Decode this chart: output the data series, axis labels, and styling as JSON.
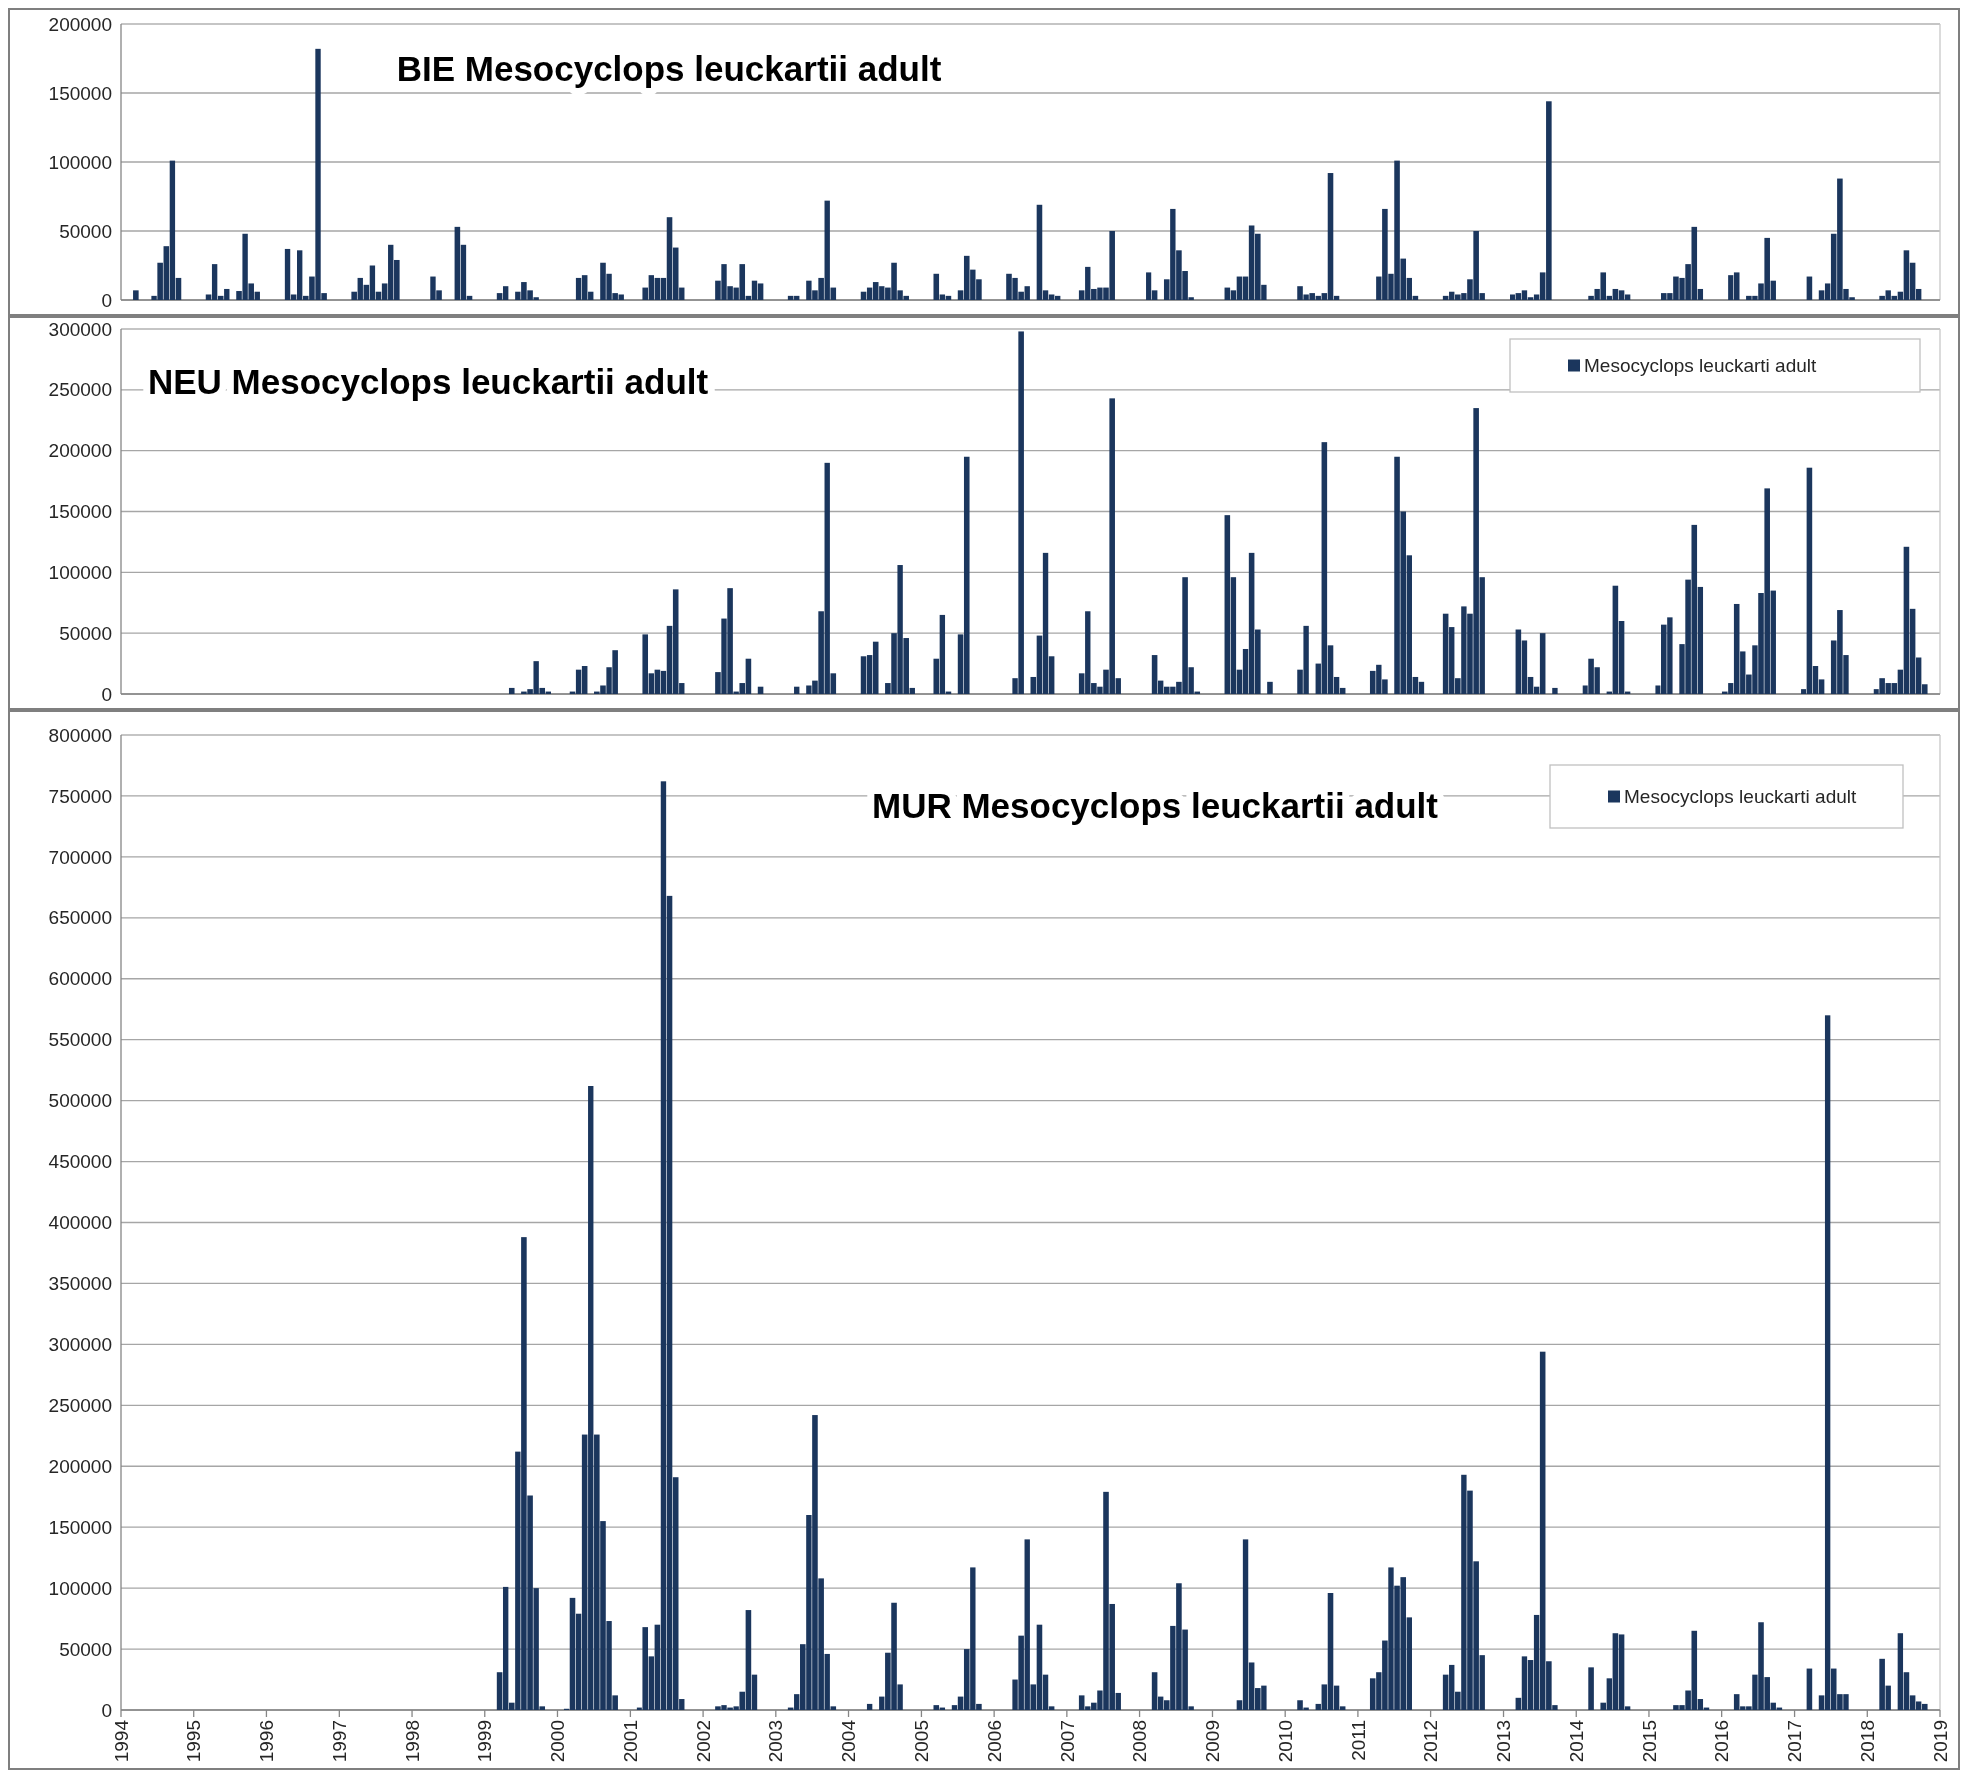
{
  "chart_data": [
    {
      "type": "bar",
      "title": "BIE Mesocyclops leuckartii adult",
      "xlim": [
        "1994-01",
        "2019-01"
      ],
      "ylim": [
        0,
        200000
      ],
      "yticks": [
        0,
        50000,
        100000,
        150000,
        200000
      ],
      "grid": "y",
      "tick_labels": "y",
      "x": [
        "1994-03",
        "1994-06",
        "1994-07",
        "1994-08",
        "1994-09",
        "1994-10",
        "1995-03",
        "1995-04",
        "1995-05",
        "1995-06",
        "1995-08",
        "1995-09",
        "1995-10",
        "1995-11",
        "1996-04",
        "1996-05",
        "1996-06",
        "1996-07",
        "1996-08",
        "1996-09",
        "1996-10",
        "1997-03",
        "1997-04",
        "1997-05",
        "1997-06",
        "1997-07",
        "1997-08",
        "1997-09",
        "1997-10",
        "1998-04",
        "1998-05",
        "1998-08",
        "1998-09",
        "1998-10",
        "1999-03",
        "1999-04",
        "1999-06",
        "1999-07",
        "1999-08",
        "1999-09",
        "2000-04",
        "2000-05",
        "2000-06",
        "2000-08",
        "2000-09",
        "2000-10",
        "2000-11",
        "2001-03",
        "2001-04",
        "2001-05",
        "2001-06",
        "2001-07",
        "2001-08",
        "2001-09",
        "2002-03",
        "2002-04",
        "2002-05",
        "2002-06",
        "2002-07",
        "2002-08",
        "2002-09",
        "2002-10",
        "2003-03",
        "2003-04",
        "2003-06",
        "2003-07",
        "2003-08",
        "2003-09",
        "2003-10",
        "2004-03",
        "2004-04",
        "2004-05",
        "2004-06",
        "2004-07",
        "2004-08",
        "2004-09",
        "2004-10",
        "2005-03",
        "2005-04",
        "2005-05",
        "2005-07",
        "2005-08",
        "2005-09",
        "2005-10",
        "2006-03",
        "2006-04",
        "2006-05",
        "2006-06",
        "2006-08",
        "2006-09",
        "2006-10",
        "2006-11",
        "2007-03",
        "2007-04",
        "2007-05",
        "2007-06",
        "2007-07",
        "2007-08",
        "2008-02",
        "2008-03",
        "2008-05",
        "2008-06",
        "2008-07",
        "2008-08",
        "2008-09",
        "2009-03",
        "2009-04",
        "2009-05",
        "2009-06",
        "2009-07",
        "2009-08",
        "2009-09",
        "2010-03",
        "2010-04",
        "2010-05",
        "2010-06",
        "2010-07",
        "2010-08",
        "2010-09",
        "2011-04",
        "2011-05",
        "2011-06",
        "2011-07",
        "2011-08",
        "2011-09",
        "2011-10",
        "2012-03",
        "2012-04",
        "2012-05",
        "2012-06",
        "2012-07",
        "2012-08",
        "2012-09",
        "2013-02",
        "2013-03",
        "2013-04",
        "2013-05",
        "2013-06",
        "2013-07",
        "2013-08",
        "2014-03",
        "2014-04",
        "2014-05",
        "2014-06",
        "2014-07",
        "2014-08",
        "2014-09",
        "2015-03",
        "2015-04",
        "2015-05",
        "2015-06",
        "2015-07",
        "2015-08",
        "2015-09",
        "2016-02",
        "2016-03",
        "2016-05",
        "2016-06",
        "2016-07",
        "2016-08",
        "2016-09",
        "2017-03",
        "2017-05",
        "2017-06",
        "2017-07",
        "2017-08",
        "2017-09",
        "2017-10",
        "2018-03",
        "2018-04",
        "2018-05",
        "2018-06",
        "2018-07",
        "2018-08",
        "2018-09"
      ],
      "series": [
        {
          "color": "#1b365d",
          "values": [
            7000,
            3000,
            27000,
            39000,
            101000,
            16000,
            4000,
            26000,
            3000,
            8000,
            6500,
            48000,
            12000,
            6000,
            37000,
            4000,
            36000,
            3000,
            17000,
            182000,
            5000,
            6000,
            16000,
            11000,
            25000,
            6000,
            12000,
            40000,
            29000,
            17000,
            7000,
            53000,
            40000,
            3000,
            5000,
            10000,
            6000,
            13000,
            7000,
            2000,
            16000,
            18000,
            6000,
            27000,
            19000,
            5000,
            4000,
            9000,
            18000,
            16000,
            16000,
            60000,
            38000,
            9000,
            14000,
            26000,
            10000,
            9000,
            26000,
            3000,
            14000,
            12000,
            3000,
            3000,
            14000,
            7000,
            16000,
            72000,
            9000,
            6000,
            9000,
            13000,
            10000,
            9000,
            27000,
            7000,
            3000,
            19000,
            4000,
            3000,
            7000,
            32000,
            22000,
            15000,
            19000,
            16000,
            6000,
            10000,
            69000,
            7000,
            4000,
            3000,
            7000,
            24000,
            8000,
            9000,
            9000,
            50000,
            20000,
            7000,
            15000,
            66000,
            36000,
            21000,
            2000,
            9000,
            7000,
            17000,
            17000,
            54000,
            48000,
            11000,
            10000,
            4000,
            5000,
            3000,
            5000,
            92000,
            3000,
            17000,
            66000,
            19000,
            101000,
            30000,
            16000,
            3000,
            3000,
            6000,
            4000,
            5000,
            15000,
            50000,
            5000,
            4000,
            5000,
            7000,
            2000,
            4000,
            20000,
            144000,
            3000,
            8000,
            20000,
            3000,
            8000,
            7000,
            4000,
            5000,
            5000,
            17000,
            16000,
            26000,
            53000,
            8000,
            18000,
            20000,
            3000,
            3000,
            12000,
            45000,
            14000,
            17000,
            7000,
            12000,
            48000,
            88000,
            8000,
            2000,
            3000,
            7000,
            3000,
            6000,
            36000,
            27000,
            8000
          ]
        }
      ]
    },
    {
      "type": "bar",
      "title": "NEU Mesocyclops leuckartii adult",
      "xlim": [
        "1994-01",
        "2019-01"
      ],
      "ylim": [
        0,
        300000
      ],
      "yticks": [
        0,
        50000,
        100000,
        150000,
        200000,
        250000,
        300000
      ],
      "grid": "y",
      "tick_labels": "y",
      "legend": "top right",
      "x": [
        "1999-05",
        "1999-07",
        "1999-08",
        "1999-09",
        "1999-10",
        "1999-11",
        "2000-03",
        "2000-04",
        "2000-05",
        "2000-07",
        "2000-08",
        "2000-09",
        "2000-10",
        "2001-03",
        "2001-04",
        "2001-05",
        "2001-06",
        "2001-07",
        "2001-08",
        "2001-09",
        "2002-03",
        "2002-04",
        "2002-05",
        "2002-06",
        "2002-07",
        "2002-08",
        "2002-10",
        "2003-04",
        "2003-06",
        "2003-07",
        "2003-08",
        "2003-09",
        "2003-10",
        "2004-03",
        "2004-04",
        "2004-05",
        "2004-07",
        "2004-08",
        "2004-09",
        "2004-10",
        "2004-11",
        "2005-03",
        "2005-04",
        "2005-05",
        "2005-07",
        "2005-08",
        "2006-04",
        "2006-05",
        "2006-07",
        "2006-08",
        "2006-09",
        "2006-10",
        "2007-03",
        "2007-04",
        "2007-05",
        "2007-06",
        "2007-07",
        "2007-08",
        "2007-09",
        "2008-03",
        "2008-04",
        "2008-05",
        "2008-06",
        "2008-07",
        "2008-08",
        "2008-09",
        "2008-10",
        "2009-03",
        "2009-04",
        "2009-05",
        "2009-06",
        "2009-07",
        "2009-08",
        "2009-10",
        "2010-03",
        "2010-04",
        "2010-06",
        "2010-07",
        "2010-08",
        "2010-09",
        "2010-10",
        "2011-03",
        "2011-04",
        "2011-05",
        "2011-07",
        "2011-08",
        "2011-09",
        "2011-10",
        "2011-11",
        "2012-03",
        "2012-04",
        "2012-05",
        "2012-06",
        "2012-07",
        "2012-08",
        "2012-09",
        "2013-03",
        "2013-04",
        "2013-05",
        "2013-06",
        "2013-07",
        "2013-09",
        "2014-02",
        "2014-03",
        "2014-04",
        "2014-06",
        "2014-07",
        "2014-08",
        "2014-09",
        "2015-02",
        "2015-03",
        "2015-04",
        "2015-06",
        "2015-07",
        "2015-08",
        "2015-09",
        "2016-01",
        "2016-02",
        "2016-03",
        "2016-04",
        "2016-05",
        "2016-06",
        "2016-07",
        "2016-08",
        "2016-09",
        "2017-02",
        "2017-03",
        "2017-04",
        "2017-05",
        "2017-07",
        "2017-08",
        "2017-09",
        "2018-02",
        "2018-03",
        "2018-04",
        "2018-05",
        "2018-06",
        "2018-07",
        "2018-08",
        "2018-09",
        "2018-10"
      ],
      "series": [
        {
          "name": "Mesocyclops leuckarti adult",
          "color": "#1b365d",
          "values": [
            5000,
            2000,
            4000,
            27000,
            5000,
            2000,
            2000,
            20000,
            23000,
            2000,
            7000,
            22000,
            36000,
            49000,
            17000,
            20000,
            19000,
            56000,
            86000,
            9000,
            18000,
            62000,
            87000,
            2000,
            9000,
            29000,
            6000,
            6000,
            7000,
            11000,
            68000,
            190000,
            17000,
            31000,
            32000,
            43000,
            9000,
            50000,
            106000,
            46000,
            5000,
            29000,
            65000,
            2000,
            49000,
            195000,
            13000,
            298000,
            14000,
            48000,
            116000,
            31000,
            17000,
            68000,
            9000,
            6000,
            20000,
            243000,
            13000,
            32000,
            11000,
            6000,
            6000,
            10000,
            96000,
            22000,
            2000,
            147000,
            96000,
            20000,
            37000,
            116000,
            53000,
            10000,
            20000,
            56000,
            25000,
            207000,
            40000,
            14000,
            5000,
            19000,
            24000,
            12000,
            195000,
            150000,
            114000,
            14000,
            10000,
            66000,
            55000,
            13000,
            72000,
            66000,
            235000,
            96000,
            53000,
            44000,
            14000,
            6000,
            50000,
            5000,
            7000,
            29000,
            22000,
            2000,
            89000,
            60000,
            2000,
            7000,
            57000,
            63000,
            41000,
            94000,
            139000,
            88000,
            2000,
            9000,
            74000,
            35000,
            16000,
            40000,
            83000,
            169000,
            85000,
            4000,
            186000,
            23000,
            12000,
            44000,
            69000,
            32000,
            4000,
            13000,
            9000,
            9000,
            20000,
            121000,
            70000,
            30000,
            8000
          ]
        }
      ]
    },
    {
      "type": "bar",
      "title": "MUR Mesocyclops leuckartii adult",
      "xlim": [
        "1994-01",
        "2019-01"
      ],
      "ylim": [
        0,
        800000
      ],
      "yticks": [
        0,
        50000,
        100000,
        150000,
        200000,
        250000,
        300000,
        350000,
        400000,
        450000,
        500000,
        550000,
        600000,
        650000,
        700000,
        750000,
        800000
      ],
      "grid": "y",
      "legend": "top right",
      "xticks": [
        "1994",
        "1995",
        "1996",
        "1997",
        "1998",
        "1999",
        "2000",
        "2001",
        "2002",
        "2003",
        "2004",
        "2005",
        "2006",
        "2007",
        "2008",
        "2009",
        "2010",
        "2011",
        "2012",
        "2013",
        "2014",
        "2015",
        "2016",
        "2017",
        "2018",
        "2019"
      ],
      "x": [
        "1999-03",
        "1999-04",
        "1999-05",
        "1999-06",
        "1999-07",
        "1999-08",
        "1999-09",
        "1999-10",
        "2000-02",
        "2000-03",
        "2000-04",
        "2000-05",
        "2000-06",
        "2000-07",
        "2000-08",
        "2000-09",
        "2000-10",
        "2001-02",
        "2001-03",
        "2001-04",
        "2001-05",
        "2001-06",
        "2001-07",
        "2001-08",
        "2001-09",
        "2002-03",
        "2002-04",
        "2002-05",
        "2002-06",
        "2002-07",
        "2002-08",
        "2002-09",
        "2003-03",
        "2003-04",
        "2003-05",
        "2003-06",
        "2003-07",
        "2003-08",
        "2003-09",
        "2003-10",
        "2004-04",
        "2004-06",
        "2004-07",
        "2004-08",
        "2004-09",
        "2005-03",
        "2005-04",
        "2005-06",
        "2005-07",
        "2005-08",
        "2005-09",
        "2005-10",
        "2006-04",
        "2006-05",
        "2006-06",
        "2006-07",
        "2006-08",
        "2006-09",
        "2006-10",
        "2007-03",
        "2007-04",
        "2007-05",
        "2007-06",
        "2007-07",
        "2007-08",
        "2007-09",
        "2008-03",
        "2008-04",
        "2008-05",
        "2008-06",
        "2008-07",
        "2008-08",
        "2008-09",
        "2009-05",
        "2009-06",
        "2009-07",
        "2009-08",
        "2009-09",
        "2010-03",
        "2010-04",
        "2010-06",
        "2010-07",
        "2010-08",
        "2010-09",
        "2010-10",
        "2011-03",
        "2011-04",
        "2011-05",
        "2011-06",
        "2011-07",
        "2011-08",
        "2011-09",
        "2012-03",
        "2012-04",
        "2012-05",
        "2012-06",
        "2012-07",
        "2012-08",
        "2012-09",
        "2013-03",
        "2013-04",
        "2013-05",
        "2013-06",
        "2013-07",
        "2013-08",
        "2013-09",
        "2014-03",
        "2014-05",
        "2014-06",
        "2014-07",
        "2014-08",
        "2014-09",
        "2015-05",
        "2015-06",
        "2015-07",
        "2015-08",
        "2015-09",
        "2015-10",
        "2016-03",
        "2016-04",
        "2016-05",
        "2016-06",
        "2016-07",
        "2016-08",
        "2016-09",
        "2016-10",
        "2017-03",
        "2017-05",
        "2017-06",
        "2017-07",
        "2017-08",
        "2017-09",
        "2018-03",
        "2018-04",
        "2018-06",
        "2018-07",
        "2018-08",
        "2018-09",
        "2018-10"
      ],
      "series": [
        {
          "name": "Mesocyclops leuckarti adult",
          "color": "#1b365d",
          "values": [
            31000,
            101000,
            6000,
            212000,
            388000,
            176000,
            100000,
            3000,
            1000,
            92000,
            79000,
            226000,
            512000,
            226000,
            155000,
            73000,
            12000,
            2000,
            68000,
            44000,
            70000,
            762000,
            668000,
            191000,
            9000,
            3000,
            4000,
            2000,
            3000,
            15000,
            82000,
            29000,
            2000,
            13000,
            54000,
            160000,
            242000,
            108000,
            46000,
            3000,
            5000,
            11000,
            47000,
            88000,
            21000,
            4000,
            2000,
            4000,
            11000,
            50000,
            117000,
            5000,
            25000,
            61000,
            140000,
            21000,
            70000,
            29000,
            3000,
            12000,
            3000,
            6000,
            16000,
            179000,
            87000,
            14000,
            31000,
            11000,
            8000,
            69000,
            104000,
            66000,
            3000,
            8000,
            140000,
            39000,
            18000,
            20000,
            8000,
            2000,
            5000,
            21000,
            96000,
            20000,
            3000,
            26000,
            31000,
            57000,
            117000,
            102000,
            109000,
            76000,
            29000,
            37000,
            15000,
            193000,
            180000,
            122000,
            45000,
            10000,
            44000,
            41000,
            78000,
            294000,
            40000,
            4000,
            35000,
            6000,
            26000,
            63000,
            62000,
            3000,
            4000,
            4000,
            16000,
            65000,
            9000,
            2000,
            13000,
            3000,
            3000,
            29000,
            72000,
            27000,
            6000,
            2000,
            34000,
            12000,
            570000,
            34000,
            13000,
            13000,
            42000,
            20000,
            63000,
            31000,
            12000,
            7000,
            5000
          ]
        }
      ]
    }
  ]
}
